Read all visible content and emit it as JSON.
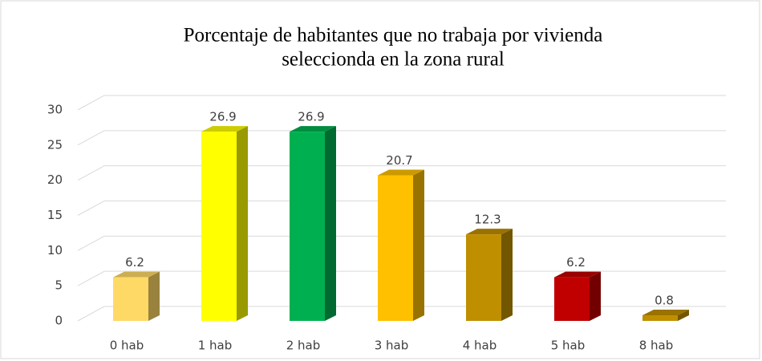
{
  "chart_data": {
    "type": "bar3d",
    "title": [
      "Porcentaje de habitantes que no trabaja por vivienda",
      "seleccionda en la zona rural"
    ],
    "categories": [
      "0 hab",
      "1 hab",
      "2 hab",
      "3 hab",
      "4 hab",
      "5 hab",
      "8 hab"
    ],
    "values": [
      6.2,
      26.9,
      26.9,
      20.7,
      12.3,
      6.2,
      0.8
    ],
    "colors": [
      "#FFD966",
      "#FFFF00",
      "#00B050",
      "#FFC000",
      "#BF8F00",
      "#C00000",
      "#BF8F00"
    ],
    "ylim": [
      0,
      30
    ],
    "yticks": [
      0,
      5,
      10,
      15,
      20,
      25,
      30
    ],
    "grid": true
  }
}
